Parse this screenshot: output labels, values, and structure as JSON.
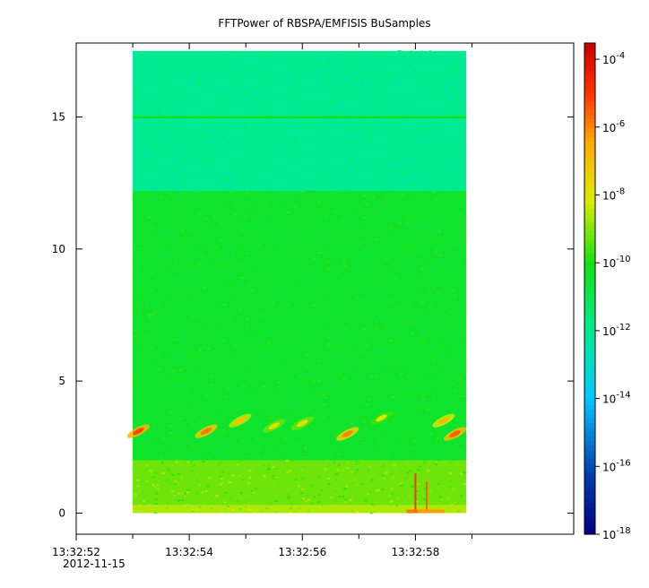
{
  "chart_data": {
    "type": "heatmap",
    "title": "FFTPower of RBSPA/EMFISIS  BuSamples",
    "xlabel": "",
    "ylabel": "",
    "x_range": [
      "13:32:52.0",
      "13:33:00.8"
    ],
    "x_ticks": [
      "13:32:52",
      "13:32:54",
      "13:32:56",
      "13:32:58"
    ],
    "x_minor_ticks": [
      "13:32:53",
      "13:32:55",
      "13:32:57",
      "13:32:59"
    ],
    "x_date_label": "2012-11-15",
    "data_time_range": [
      "13:32:53.0",
      "13:32:58.9"
    ],
    "ylim": [
      -0.8,
      17.8
    ],
    "y_ticks": [
      0,
      5,
      10,
      15
    ],
    "data_freq_range": [
      0,
      17.5
    ],
    "color_scale": "log",
    "colormap": "rainbow (dark blue to red)",
    "zlim": [
      "1e-18",
      "3e-4"
    ],
    "colorbar_ticks": [
      {
        "base": "10",
        "exp": "-4",
        "value": -4
      },
      {
        "base": "10",
        "exp": "-6",
        "value": -6
      },
      {
        "base": "10",
        "exp": "-8",
        "value": -8
      },
      {
        "base": "10",
        "exp": "-10",
        "value": -10
      },
      {
        "base": "10",
        "exp": "-12",
        "value": -12
      },
      {
        "base": "10",
        "exp": "-14",
        "value": -14
      },
      {
        "base": "10",
        "exp": "-16",
        "value": -16
      },
      {
        "base": "10",
        "exp": "-18",
        "value": -18
      }
    ],
    "background_levels": [
      {
        "freq_range": [
          0,
          0.3
        ],
        "log10_power": -8.6
      },
      {
        "freq_range": [
          0.3,
          2.0
        ],
        "log10_power": -9.2
      },
      {
        "freq_range": [
          2.0,
          12.2
        ],
        "log10_power": -10.4
      },
      {
        "freq_range": [
          12.2,
          17.5
        ],
        "log10_power": -12.0
      }
    ],
    "features": [
      {
        "kind": "line",
        "freq": 15.0,
        "log10_power": -10.2
      },
      {
        "kind": "burst",
        "t": "13:32:53.1",
        "freq": 3.1,
        "log10_power": -5.2
      },
      {
        "kind": "burst",
        "t": "13:32:54.3",
        "freq": 3.1,
        "log10_power": -5.8
      },
      {
        "kind": "burst",
        "t": "13:32:54.9",
        "freq": 3.5,
        "log10_power": -7.0
      },
      {
        "kind": "burst",
        "t": "13:32:55.5",
        "freq": 3.3,
        "log10_power": -7.8
      },
      {
        "kind": "burst",
        "t": "13:32:56.0",
        "freq": 3.4,
        "log10_power": -7.8
      },
      {
        "kind": "burst",
        "t": "13:32:56.8",
        "freq": 3.0,
        "log10_power": -6.0
      },
      {
        "kind": "burst",
        "t": "13:32:57.4",
        "freq": 3.6,
        "log10_power": -8.2
      },
      {
        "kind": "burst",
        "t": "13:32:58.5",
        "freq": 3.5,
        "log10_power": -6.8
      },
      {
        "kind": "burst",
        "t": "13:32:58.7",
        "freq": 3.0,
        "log10_power": -5.5
      },
      {
        "kind": "spike",
        "t": "13:32:58.0",
        "freq_range": [
          0,
          1.5
        ],
        "log10_power": -5.0
      },
      {
        "kind": "spike",
        "t": "13:32:58.2",
        "freq_range": [
          0,
          1.2
        ],
        "log10_power": -5.5
      }
    ]
  }
}
